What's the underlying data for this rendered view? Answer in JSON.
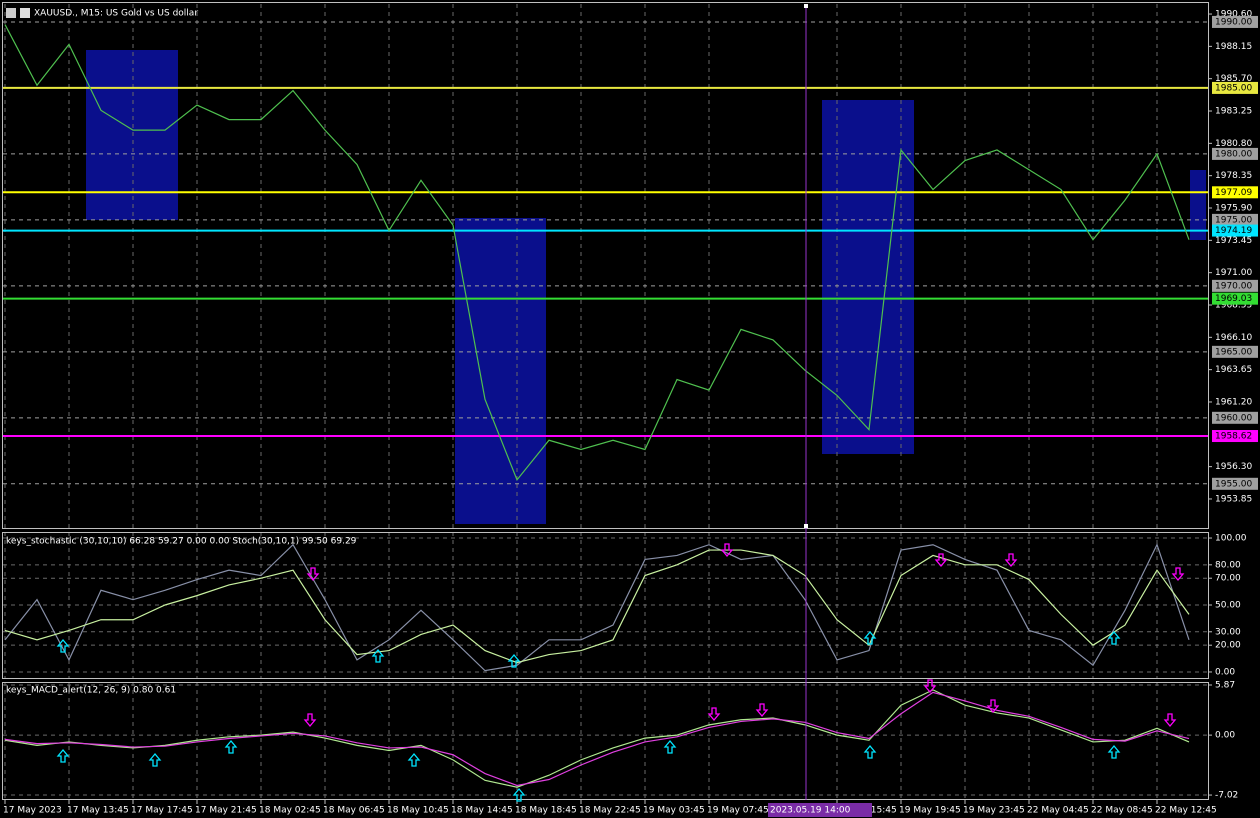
{
  "chart_data": [
    {
      "type": "line",
      "title": "XAUUSD., M15:  US Gold vs US dollar",
      "color": "#4fc04f",
      "categories": [
        "17 May 2023",
        null,
        "17 May 13:45",
        null,
        "17 May 17:45",
        null,
        "17 May 21:45",
        null,
        "18 May 02:45",
        null,
        "18 May 06:45",
        null,
        "18 May 10:45",
        null,
        "18 May 14:45",
        null,
        "18 May 18:45",
        null,
        "18 May 22:45",
        null,
        "19 May 03:45",
        null,
        "19 May 07:45",
        null,
        null,
        null,
        "19 May 15:45",
        null,
        "19 May 19:45",
        null,
        "19 May 23:45",
        null,
        "22 May 04:45",
        null,
        "22 May 08:45",
        null,
        "22 May 12:45",
        null
      ],
      "values": [
        1989.8,
        1985.2,
        1988.3,
        1983.3,
        1981.8,
        1981.8,
        1983.7,
        1982.6,
        1982.6,
        1984.8,
        1981.8,
        1979.2,
        1974.2,
        1978.0,
        1974.6,
        1961.4,
        1955.3,
        1958.3,
        1957.6,
        1958.3,
        1957.6,
        1962.9,
        1962.1,
        1966.7,
        1965.9,
        1963.6,
        1961.7,
        1959.1,
        1980.3,
        1977.3,
        1979.5,
        1980.3,
        1978.8,
        1977.3,
        1973.5,
        1976.5,
        1980.0,
        1973.5
      ],
      "ylim": [
        1951.65,
        1991.36
      ],
      "yticks": [
        {
          "value": 1990.6,
          "label": "1990.60"
        },
        1988.15,
        {
          "value": 1985.7,
          "label": "1985.70"
        },
        1983.25,
        {
          "value": 1980.8,
          "label": "1980.80"
        },
        1978.35,
        {
          "value": 1975.9,
          "label": "1975.90"
        },
        1973.45,
        {
          "value": 1971,
          "label": "1971.00"
        },
        1968.55,
        {
          "value": 1966.1,
          "label": "1966.10"
        },
        1963.65,
        {
          "value": 1961.2,
          "label": "1961.20"
        },
        {
          "value": 1956.3,
          "label": "1956.30"
        },
        1953.85
      ],
      "levels": [
        {
          "value": 1990,
          "label": "1990.00",
          "color": "#a0a0a0"
        },
        {
          "value": 1985,
          "label": "1985.00",
          "color": "#e8e840"
        },
        {
          "value": 1980,
          "label": "1980.00",
          "color": "#a0a0a0"
        },
        {
          "value": 1977.09,
          "label": "1977.09",
          "color": "#ffff00"
        },
        {
          "value": 1975,
          "label": "1975.00",
          "color": "#a0a0a0"
        },
        {
          "value": 1974.19,
          "label": "1974.19",
          "color": "#00e5ff"
        },
        {
          "value": 1970,
          "label": "1970.00",
          "color": "#a0a0a0"
        },
        {
          "value": 1969.03,
          "label": "1969.03",
          "color": "#33dd33"
        },
        {
          "value": 1965,
          "label": "1965.00",
          "color": "#a0a0a0"
        },
        {
          "value": 1960,
          "label": "1960.00",
          "color": "#a0a0a0"
        },
        {
          "value": 1958.62,
          "label": "1958.62",
          "color": "#ff00ff"
        },
        {
          "value": 1955,
          "label": "1955.00",
          "color": "#a0a0a0"
        }
      ],
      "crosshair_label": "2023.05.19 14:00",
      "grid": true
    },
    {
      "type": "line",
      "title": "keys_stochastic (30,10,10) 66.28 59.27 0.00 0.00 Stoch(30,10,1) 99.50 69.29",
      "series": [
        {
          "color": "#8890a8",
          "values": [
            24,
            54,
            9,
            61,
            54,
            61,
            69,
            76,
            72,
            95,
            54,
            9,
            24,
            46,
            24,
            1,
            5,
            24,
            24,
            35,
            84,
            87,
            95,
            84,
            87,
            54,
            9,
            16,
            91,
            95,
            84,
            76,
            31,
            24,
            5,
            46,
            95,
            24
          ]
        },
        {
          "color": "#c8f0a0",
          "values": [
            31,
            24,
            31,
            39,
            39,
            50,
            57,
            65,
            70,
            76,
            39,
            13,
            16,
            28,
            35,
            16,
            7,
            13,
            16,
            24,
            72,
            80,
            91,
            91,
            87,
            72,
            39,
            20,
            72,
            87,
            80,
            80,
            69,
            43,
            20,
            35,
            76,
            43
          ]
        }
      ],
      "ylim": [
        -4.5,
        104.5
      ],
      "yticks": [
        {
          "value": 100,
          "label": "100.00"
        },
        {
          "value": 80,
          "label": "80.00"
        },
        {
          "value": 70,
          "label": "70.00"
        },
        {
          "value": 50,
          "label": "50.00"
        },
        {
          "value": 30,
          "label": "30.00"
        },
        {
          "value": 20,
          "label": "20.00"
        },
        {
          "value": 0,
          "label": "0.00"
        }
      ],
      "grid": true
    },
    {
      "type": "line",
      "title": "keys_MACD_alert(12, 26, 9) 0.80 0.61",
      "series": [
        {
          "color": "#b0e890",
          "values": [
            -0.6,
            -1.2,
            -0.8,
            -1.2,
            -1.5,
            -1.2,
            -0.6,
            -0.2,
            0,
            0.35,
            -0.35,
            -1.2,
            -1.8,
            -1.2,
            -2.9,
            -5.3,
            -6.1,
            -4.7,
            -2.9,
            -1.5,
            -0.35,
            0,
            1.2,
            1.8,
            2.0,
            1.2,
            0,
            -0.6,
            3.5,
            5.3,
            3.5,
            2.6,
            2.0,
            0.6,
            -0.8,
            -0.6,
            0.8,
            -0.8
          ]
        },
        {
          "color": "#e040e0",
          "values": [
            -0.5,
            -1.0,
            -0.9,
            -1.1,
            -1.4,
            -1.3,
            -0.8,
            -0.4,
            -0.1,
            0.2,
            -0.1,
            -0.9,
            -1.5,
            -1.4,
            -2.3,
            -4.5,
            -5.9,
            -5.2,
            -3.5,
            -2.0,
            -0.8,
            -0.2,
            0.9,
            1.6,
            1.9,
            1.5,
            0.3,
            -0.4,
            2.5,
            5.0,
            4.0,
            2.9,
            2.2,
            0.9,
            -0.5,
            -0.7,
            0.5,
            -0.4
          ]
        }
      ],
      "ylim": [
        -7.6,
        6.22
      ],
      "yticks": [
        5.87,
        {
          "value": 0,
          "label": "0.00"
        },
        -7.02
      ],
      "grid": true
    }
  ]
}
